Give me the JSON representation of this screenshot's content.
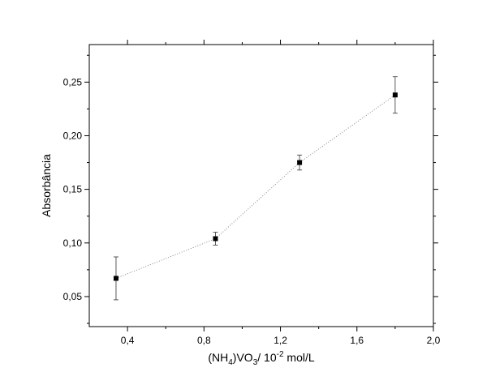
{
  "chart_data": {
    "type": "scatter",
    "xlabel": {
      "pre": "(NH",
      "sub1": "4",
      "mid": ")VO",
      "sub2": "3",
      "mid2": "/ 10",
      "sup": "-2",
      "post": " mol/L"
    },
    "ylabel": "Absorbância",
    "xlim": [
      0.2,
      2.0
    ],
    "ylim": [
      0.022,
      0.285
    ],
    "x_ticks": [
      {
        "value": 0.4,
        "label": "0,4"
      },
      {
        "value": 0.8,
        "label": "0,8"
      },
      {
        "value": 1.2,
        "label": "1,2"
      },
      {
        "value": 1.6,
        "label": "1,6"
      },
      {
        "value": 2.0,
        "label": "2,0"
      }
    ],
    "y_ticks": [
      {
        "value": 0.05,
        "label": "0,05"
      },
      {
        "value": 0.1,
        "label": "0,10"
      },
      {
        "value": 0.15,
        "label": "0,15"
      },
      {
        "value": 0.2,
        "label": "0,20"
      },
      {
        "value": 0.25,
        "label": "0,25"
      }
    ],
    "points": [
      {
        "x": 0.34,
        "y": 0.067,
        "err": 0.02
      },
      {
        "x": 0.86,
        "y": 0.104,
        "err": 0.006
      },
      {
        "x": 1.3,
        "y": 0.175,
        "err": 0.007
      },
      {
        "x": 1.8,
        "y": 0.238,
        "err": 0.017
      }
    ],
    "connect_line": "dotted",
    "grid": false
  }
}
